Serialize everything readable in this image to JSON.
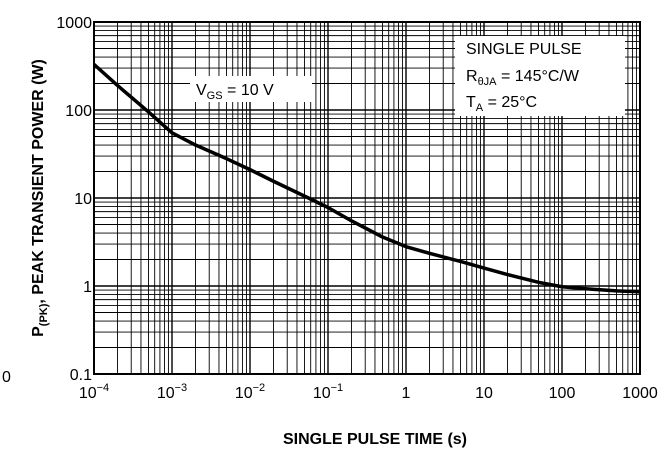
{
  "chart_data": {
    "type": "line",
    "xscale": "log",
    "yscale": "log",
    "xlim": [
      0.0001,
      1000
    ],
    "ylim": [
      0.1,
      1000
    ],
    "grid": true,
    "xlabel": "SINGLE PULSE TIME (s)",
    "ylabel": {
      "prefix": "P",
      "subscript": "(PK)",
      "suffix": ", PEAK TRANSIENT POWER (W)"
    },
    "x_tick_labels": [
      {
        "value": 0.0001,
        "base": "10",
        "exp": "−4"
      },
      {
        "value": 0.001,
        "base": "10",
        "exp": "−3"
      },
      {
        "value": 0.01,
        "base": "10",
        "exp": "−2"
      },
      {
        "value": 0.1,
        "base": "10",
        "exp": "−1"
      },
      {
        "value": 1,
        "base": "1",
        "exp": ""
      },
      {
        "value": 10,
        "base": "10",
        "exp": ""
      },
      {
        "value": 100,
        "base": "100",
        "exp": ""
      },
      {
        "value": 1000,
        "base": "1000",
        "exp": ""
      }
    ],
    "y_tick_labels": [
      {
        "value": 0.1,
        "text": "0.1"
      },
      {
        "value": 1,
        "text": "1"
      },
      {
        "value": 10,
        "text": "10"
      },
      {
        "value": 100,
        "text": "100"
      },
      {
        "value": 1000,
        "text": "1000"
      }
    ],
    "stray_label": "0",
    "annotations": {
      "vgs": {
        "prefix": "V",
        "sub": "GS",
        "suffix": " = 10 V"
      },
      "legend_line1": "SINGLE PULSE",
      "legend_line2": {
        "prefix": "R",
        "sub": "θJA",
        "suffix": " = 145°C/W"
      },
      "legend_line3": {
        "prefix": "T",
        "sub": "A",
        "suffix": " = 25°C"
      }
    },
    "series": [
      {
        "x": [
          0.0001,
          0.0002,
          0.0005,
          0.001,
          0.002,
          0.005,
          0.01,
          0.02,
          0.05,
          0.1,
          0.2,
          0.5,
          1,
          2,
          5,
          10,
          20,
          50,
          100,
          200,
          500,
          1000
        ],
        "y": [
          330,
          190,
          95,
          55,
          40,
          28,
          21,
          15.5,
          10.5,
          7.8,
          5.5,
          3.6,
          2.8,
          2.35,
          1.9,
          1.6,
          1.35,
          1.1,
          0.98,
          0.93,
          0.88,
          0.86
        ]
      }
    ]
  }
}
